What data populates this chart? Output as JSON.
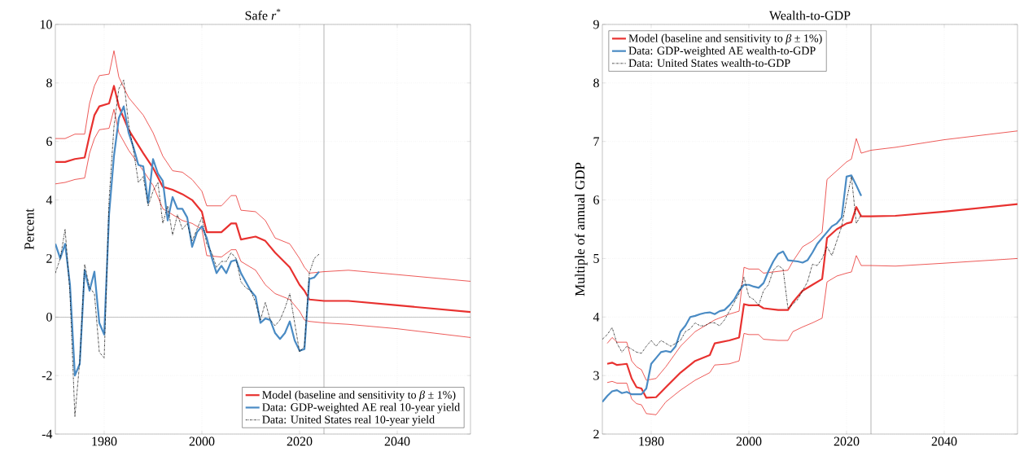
{
  "chart_data": [
    {
      "type": "line",
      "title": "Safe *r*$^{*}$",
      "ylabel": "Percent",
      "xlim": [
        1970,
        2055
      ],
      "ylim": [
        -4,
        10
      ],
      "xticks": [
        1980,
        2000,
        2020,
        2040
      ],
      "yticks": [
        -4,
        -2,
        0,
        2,
        4,
        6,
        8,
        10
      ],
      "grid": true,
      "legend": "bottom right",
      "ref_lines": [
        {
          "axis": "x",
          "value": 2025
        },
        {
          "axis": "y",
          "value": 0
        }
      ],
      "series": [
        {
          "name": "Model (baseline and sensitivity to *β* ± 1%)",
          "color": "#e8312f",
          "line_style": "solid",
          "x": [
            1970,
            1972,
            1974,
            1976,
            1977,
            1978,
            1979,
            1981,
            1982,
            1983,
            1985,
            1988,
            1990,
            1992,
            1994,
            1996,
            1998,
            2000,
            2001,
            2004,
            2006,
            2007,
            2008,
            2011,
            2013,
            2015,
            2018,
            2020,
            2021,
            2022,
            2025,
            2030,
            2040,
            2055
          ],
          "values": [
            5.3,
            5.3,
            5.4,
            5.45,
            6.2,
            6.9,
            7.2,
            7.3,
            7.9,
            7.2,
            6.4,
            5.6,
            5.1,
            4.45,
            4.35,
            4.2,
            4.0,
            3.6,
            2.9,
            2.9,
            3.2,
            3.2,
            2.65,
            2.75,
            2.6,
            2.2,
            1.7,
            1.1,
            0.9,
            0.6,
            0.55,
            0.55,
            0.4,
            0.17
          ]
        },
        {
          "color": "#e8312f",
          "line_style": "solid",
          "x": [
            1970,
            1972,
            1974,
            1976,
            1977,
            1978,
            1979,
            1981,
            1982,
            1983,
            1985,
            1988,
            1990,
            1992,
            1994,
            1996,
            1998,
            2000,
            2001,
            2004,
            2006,
            2007,
            2008,
            2011,
            2013,
            2015,
            2018,
            2020,
            2021,
            2022,
            2025,
            2030,
            2040,
            2055
          ],
          "values": [
            6.1,
            6.1,
            6.25,
            6.25,
            7.3,
            7.9,
            8.25,
            8.3,
            9.1,
            8.2,
            7.5,
            6.9,
            6.3,
            5.5,
            5.0,
            4.95,
            4.7,
            4.3,
            3.8,
            3.8,
            4.15,
            4.15,
            3.65,
            3.6,
            3.3,
            2.7,
            2.5,
            2.0,
            1.7,
            1.5,
            1.55,
            1.6,
            1.45,
            1.22
          ]
        },
        {
          "color": "#e8312f",
          "line_style": "solid",
          "x": [
            1970,
            1972,
            1974,
            1976,
            1977,
            1978,
            1979,
            1981,
            1982,
            1983,
            1985,
            1988,
            1990,
            1992,
            1994,
            1996,
            1998,
            2000,
            2001,
            2004,
            2006,
            2007,
            2008,
            2011,
            2013,
            2015,
            2018,
            2020,
            2021,
            2022,
            2025,
            2030,
            2040,
            2055
          ],
          "values": [
            4.55,
            4.6,
            4.7,
            4.75,
            5.6,
            6.1,
            6.4,
            6.45,
            7.1,
            6.3,
            5.7,
            5.0,
            4.5,
            3.7,
            3.5,
            3.3,
            3.2,
            3.0,
            2.1,
            2.05,
            2.3,
            2.3,
            1.9,
            1.6,
            1.1,
            0.8,
            0.6,
            0.2,
            -0.1,
            -0.15,
            -0.2,
            -0.25,
            -0.4,
            -0.7
          ]
        },
        {
          "name": "Data: GDP-weighted AE real 10-year yield",
          "color": "#4a8bc4",
          "line_style": "solid",
          "x": [
            1970,
            1971,
            1972,
            1973,
            1974,
            1975,
            1976,
            1977,
            1978,
            1979,
            1980,
            1981,
            1982,
            1983,
            1984,
            1985,
            1986,
            1987,
            1988,
            1989,
            1990,
            1991,
            1992,
            1993,
            1994,
            1995,
            1996,
            1997,
            1998,
            1999,
            2000,
            2001,
            2002,
            2003,
            2004,
            2005,
            2006,
            2007,
            2008,
            2009,
            2010,
            2011,
            2012,
            2013,
            2014,
            2015,
            2016,
            2017,
            2018,
            2019,
            2020,
            2021,
            2022,
            2023,
            2024
          ],
          "values": [
            2.5,
            2.0,
            2.5,
            1.1,
            -2.0,
            -1.6,
            1.6,
            0.9,
            1.55,
            -0.2,
            -0.6,
            3.5,
            5.5,
            6.8,
            7.2,
            6.3,
            5.8,
            5.2,
            5.15,
            3.9,
            5.4,
            4.9,
            4.65,
            3.3,
            4.1,
            3.7,
            3.7,
            3.4,
            2.4,
            2.9,
            3.1,
            2.7,
            2.05,
            1.5,
            1.75,
            1.5,
            1.9,
            1.95,
            1.5,
            1.2,
            0.9,
            0.7,
            -0.2,
            -0.05,
            -0.1,
            -0.55,
            -0.75,
            -0.55,
            -0.15,
            -0.8,
            -1.15,
            -1.1,
            1.3,
            1.35,
            1.55
          ]
        },
        {
          "name": "Data: United States real 10-year yield",
          "color": "#000000",
          "line_style": "dashdot",
          "x": [
            1970,
            1971,
            1972,
            1973,
            1974,
            1975,
            1976,
            1977,
            1978,
            1979,
            1980,
            1981,
            1982,
            1983,
            1984,
            1985,
            1986,
            1987,
            1988,
            1989,
            1990,
            1991,
            1992,
            1993,
            1994,
            1995,
            1996,
            1997,
            1998,
            1999,
            2000,
            2001,
            2002,
            2003,
            2004,
            2005,
            2006,
            2007,
            2008,
            2009,
            2010,
            2011,
            2012,
            2013,
            2014,
            2015,
            2016,
            2017,
            2018,
            2019,
            2020,
            2021,
            2022,
            2023,
            2024
          ],
          "values": [
            1.5,
            2.0,
            3.0,
            0.8,
            -3.4,
            -1.5,
            1.8,
            1.0,
            0.8,
            -1.2,
            -1.4,
            4.0,
            6.5,
            7.8,
            8.1,
            6.6,
            5.7,
            4.6,
            4.8,
            3.8,
            4.3,
            4.6,
            3.2,
            3.8,
            2.8,
            3.5,
            3.0,
            3.2,
            2.6,
            3.0,
            3.4,
            2.5,
            2.2,
            1.7,
            1.9,
            1.9,
            2.2,
            2.0,
            1.2,
            1.0,
            0.9,
            0.5,
            -0.1,
            0.5,
            -0.1,
            -0.3,
            -0.1,
            0.3,
            0.8,
            -0.2,
            -1.2,
            -1.0,
            1.5,
            2.0,
            2.15
          ]
        }
      ]
    },
    {
      "type": "line",
      "title": "Wealth-to-GDP",
      "ylabel": "Multiple of annual GDP",
      "xlim": [
        1970,
        2055
      ],
      "ylim": [
        2,
        9
      ],
      "xticks": [
        1980,
        2000,
        2020,
        2040
      ],
      "yticks": [
        2,
        3,
        4,
        5,
        6,
        7,
        8,
        9
      ],
      "grid": true,
      "legend": "top left",
      "ref_lines": [
        {
          "axis": "x",
          "value": 2025
        }
      ],
      "series": [
        {
          "name": "Model (baseline and sensitivity to *β* ± 1%)",
          "color": "#e8312f",
          "line_style": "solid",
          "x": [
            1971,
            1972,
            1973,
            1975,
            1976,
            1977,
            1978,
            1979,
            1981,
            1983,
            1986,
            1989,
            1992,
            1993,
            1996,
            1998,
            1999,
            2000,
            2002,
            2003,
            2006,
            2008,
            2009,
            2011,
            2013,
            2015,
            2016,
            2018,
            2020,
            2021,
            2022,
            2023,
            2025,
            2030,
            2040,
            2055
          ],
          "values": [
            3.2,
            3.22,
            3.18,
            3.2,
            2.95,
            2.8,
            2.78,
            2.62,
            2.63,
            2.8,
            3.05,
            3.25,
            3.35,
            3.55,
            3.6,
            3.65,
            4.22,
            4.2,
            4.2,
            4.15,
            4.12,
            4.12,
            4.25,
            4.45,
            4.55,
            4.65,
            5.35,
            5.5,
            5.6,
            5.62,
            5.88,
            5.72,
            5.72,
            5.73,
            5.8,
            5.93
          ]
        },
        {
          "color": "#e8312f",
          "line_style": "solid",
          "x": [
            1971,
            1972,
            1973,
            1975,
            1976,
            1977,
            1978,
            1979,
            1981,
            1983,
            1986,
            1989,
            1992,
            1993,
            1996,
            1998,
            1999,
            2000,
            2002,
            2003,
            2006,
            2008,
            2009,
            2011,
            2013,
            2015,
            2016,
            2018,
            2020,
            2021,
            2022,
            2023,
            2025,
            2030,
            2040,
            2055
          ],
          "values": [
            3.55,
            3.65,
            3.57,
            3.57,
            3.25,
            3.15,
            3.1,
            2.92,
            2.95,
            3.15,
            3.5,
            3.75,
            3.9,
            3.95,
            4.05,
            4.1,
            4.85,
            4.82,
            4.82,
            4.75,
            4.78,
            4.8,
            4.95,
            5.2,
            5.3,
            5.45,
            6.35,
            6.5,
            6.65,
            6.7,
            7.05,
            6.8,
            6.85,
            6.9,
            7.03,
            7.18
          ]
        },
        {
          "color": "#e8312f",
          "line_style": "solid",
          "x": [
            1971,
            1972,
            1973,
            1975,
            1976,
            1977,
            1978,
            1979,
            1981,
            1983,
            1986,
            1989,
            1992,
            1993,
            1996,
            1998,
            1999,
            2000,
            2002,
            2003,
            2006,
            2008,
            2009,
            2011,
            2013,
            2015,
            2016,
            2018,
            2020,
            2021,
            2022,
            2023,
            2025,
            2030,
            2040,
            2055
          ],
          "values": [
            2.88,
            2.9,
            2.87,
            2.87,
            2.6,
            2.52,
            2.5,
            2.35,
            2.33,
            2.55,
            2.75,
            2.92,
            3.05,
            3.18,
            3.2,
            3.25,
            3.72,
            3.7,
            3.7,
            3.62,
            3.6,
            3.6,
            3.75,
            3.83,
            3.9,
            3.98,
            4.6,
            4.7,
            4.75,
            4.77,
            5.05,
            4.88,
            4.88,
            4.87,
            4.92,
            5.0
          ]
        },
        {
          "name": "Data: GDP-weighted AE wealth-to-GDP",
          "color": "#4a8bc4",
          "line_style": "solid",
          "x": [
            1970,
            1971,
            1972,
            1973,
            1974,
            1975,
            1976,
            1977,
            1978,
            1979,
            1980,
            1981,
            1982,
            1983,
            1984,
            1985,
            1986,
            1987,
            1988,
            1989,
            1990,
            1991,
            1992,
            1993,
            1994,
            1995,
            1996,
            1997,
            1998,
            1999,
            2000,
            2001,
            2002,
            2003,
            2004,
            2005,
            2006,
            2007,
            2008,
            2009,
            2010,
            2011,
            2012,
            2013,
            2014,
            2015,
            2016,
            2017,
            2018,
            2019,
            2020,
            2021,
            2022,
            2023
          ],
          "values": [
            2.55,
            2.65,
            2.73,
            2.75,
            2.7,
            2.72,
            2.68,
            2.68,
            2.68,
            2.78,
            3.2,
            3.3,
            3.4,
            3.42,
            3.4,
            3.5,
            3.75,
            3.85,
            4.0,
            4.02,
            4.05,
            4.07,
            4.08,
            4.05,
            4.1,
            4.12,
            4.2,
            4.3,
            4.45,
            4.55,
            4.55,
            4.52,
            4.5,
            4.58,
            4.78,
            4.95,
            5.08,
            5.12,
            4.97,
            4.96,
            4.95,
            4.93,
            4.97,
            5.1,
            5.25,
            5.35,
            5.45,
            5.55,
            5.6,
            5.7,
            6.4,
            6.42,
            6.25,
            6.07
          ]
        },
        {
          "name": "Data: United States wealth-to-GDP",
          "color": "#000000",
          "line_style": "dashdot",
          "x": [
            1970,
            1971,
            1972,
            1973,
            1974,
            1975,
            1976,
            1977,
            1978,
            1979,
            1980,
            1981,
            1982,
            1983,
            1984,
            1985,
            1986,
            1987,
            1988,
            1989,
            1990,
            1991,
            1992,
            1993,
            1994,
            1995,
            1996,
            1997,
            1998,
            1999,
            2000,
            2001,
            2002,
            2003,
            2004,
            2005,
            2006,
            2007,
            2008,
            2009,
            2010,
            2011,
            2012,
            2013,
            2014,
            2015,
            2016,
            2017,
            2018,
            2019,
            2020,
            2021,
            2022,
            2023
          ],
          "values": [
            3.62,
            3.7,
            3.82,
            3.55,
            3.4,
            3.5,
            3.45,
            3.4,
            3.38,
            3.5,
            3.6,
            3.5,
            3.6,
            3.55,
            3.5,
            3.55,
            3.6,
            3.75,
            3.8,
            3.9,
            3.85,
            3.85,
            3.9,
            3.9,
            3.85,
            3.95,
            4.1,
            4.25,
            4.4,
            4.68,
            4.35,
            4.3,
            4.2,
            4.45,
            4.55,
            4.8,
            4.88,
            4.82,
            4.15,
            4.22,
            4.3,
            4.45,
            4.6,
            4.9,
            4.88,
            5.0,
            5.2,
            5.05,
            5.3,
            5.55,
            6.0,
            6.4,
            5.6,
            5.75
          ]
        }
      ]
    }
  ]
}
